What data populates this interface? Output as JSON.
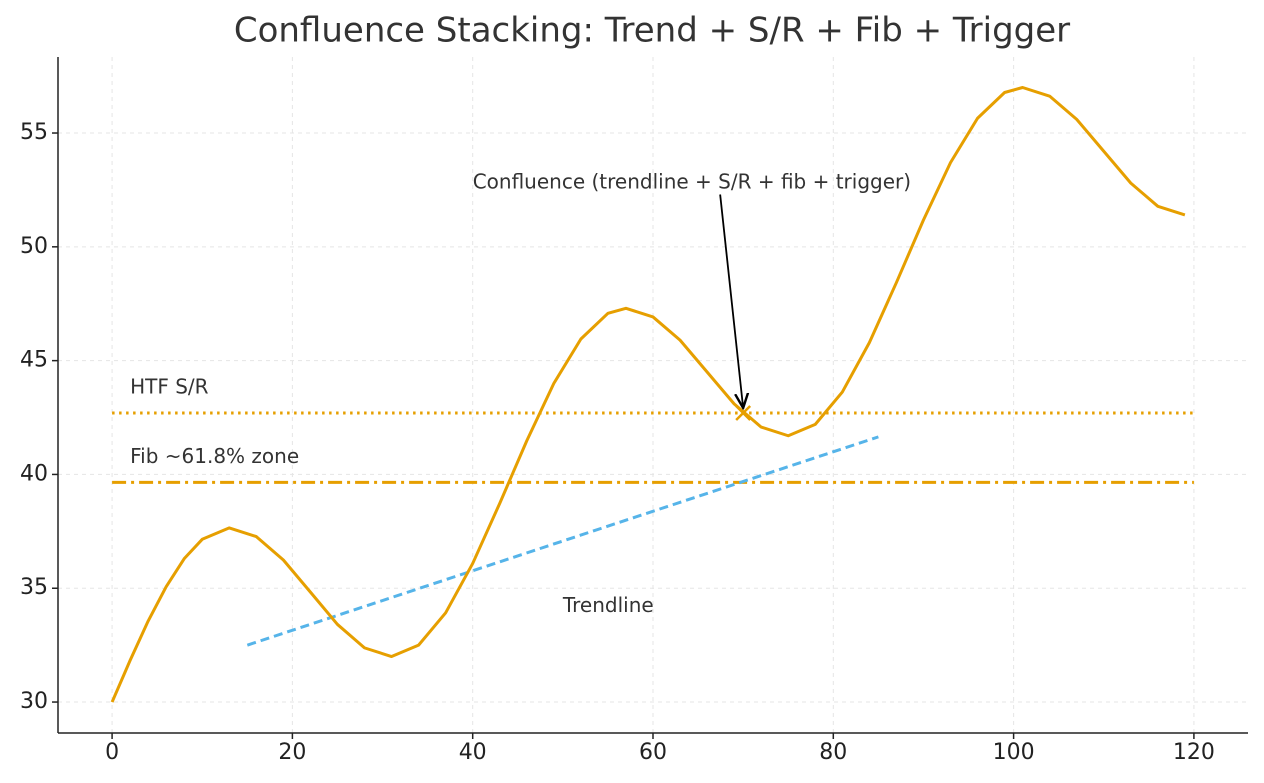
{
  "chart_data": {
    "type": "line",
    "title": "Confluence Stacking: Trend + S/R + Fib + Trigger",
    "x": [
      0,
      2,
      4,
      6,
      8,
      10,
      13,
      16,
      19,
      22,
      25,
      28,
      31,
      34,
      37,
      40,
      43,
      46,
      49,
      52,
      55,
      57,
      60,
      63,
      66,
      69,
      72,
      75,
      78,
      81,
      84,
      87,
      90,
      93,
      96,
      99,
      101,
      104,
      107,
      110,
      113,
      116,
      119
    ],
    "series": [
      {
        "color": "#e69f00",
        "values": [
          30,
          31.83,
          33.56,
          35.07,
          36.3,
          37.15,
          37.65,
          37.27,
          36.24,
          34.83,
          33.41,
          32.38,
          32.0,
          32.5,
          33.92,
          36.09,
          38.73,
          41.48,
          44.0,
          45.95,
          47.08,
          47.3,
          46.92,
          45.9,
          44.5,
          43.1,
          42.08,
          41.7,
          42.2,
          43.62,
          45.79,
          48.43,
          51.18,
          53.7,
          55.65,
          56.78,
          57.0,
          56.62,
          55.6,
          54.2,
          52.8,
          51.78,
          51.4
        ]
      }
    ],
    "lines": [
      {
        "name": "Trendline",
        "color": "#56b4e9",
        "style": "dashed",
        "x": [
          15,
          85
        ],
        "values": [
          32.5,
          41.65
        ]
      }
    ],
    "hlines": [
      {
        "name": "HTF S/R",
        "color": "#e69f00",
        "style": "dotted",
        "value": 42.7,
        "x": [
          0,
          120
        ]
      },
      {
        "name": "Fib ~61.8% zone",
        "color": "#e69f00",
        "style": "dashdot",
        "value": 39.65,
        "x": [
          0,
          120
        ]
      }
    ],
    "annotation": {
      "text": "Confluence (trendline + S/R + fib + trigger)",
      "x": 70,
      "y": 42.7
    },
    "xlim": [
      -6,
      126
    ],
    "ylim": [
      28.64,
      58.34
    ],
    "xticks": [
      0,
      20,
      40,
      60,
      80,
      100,
      120
    ],
    "yticks": [
      30,
      35,
      40,
      45,
      50,
      55
    ],
    "grid": true
  }
}
